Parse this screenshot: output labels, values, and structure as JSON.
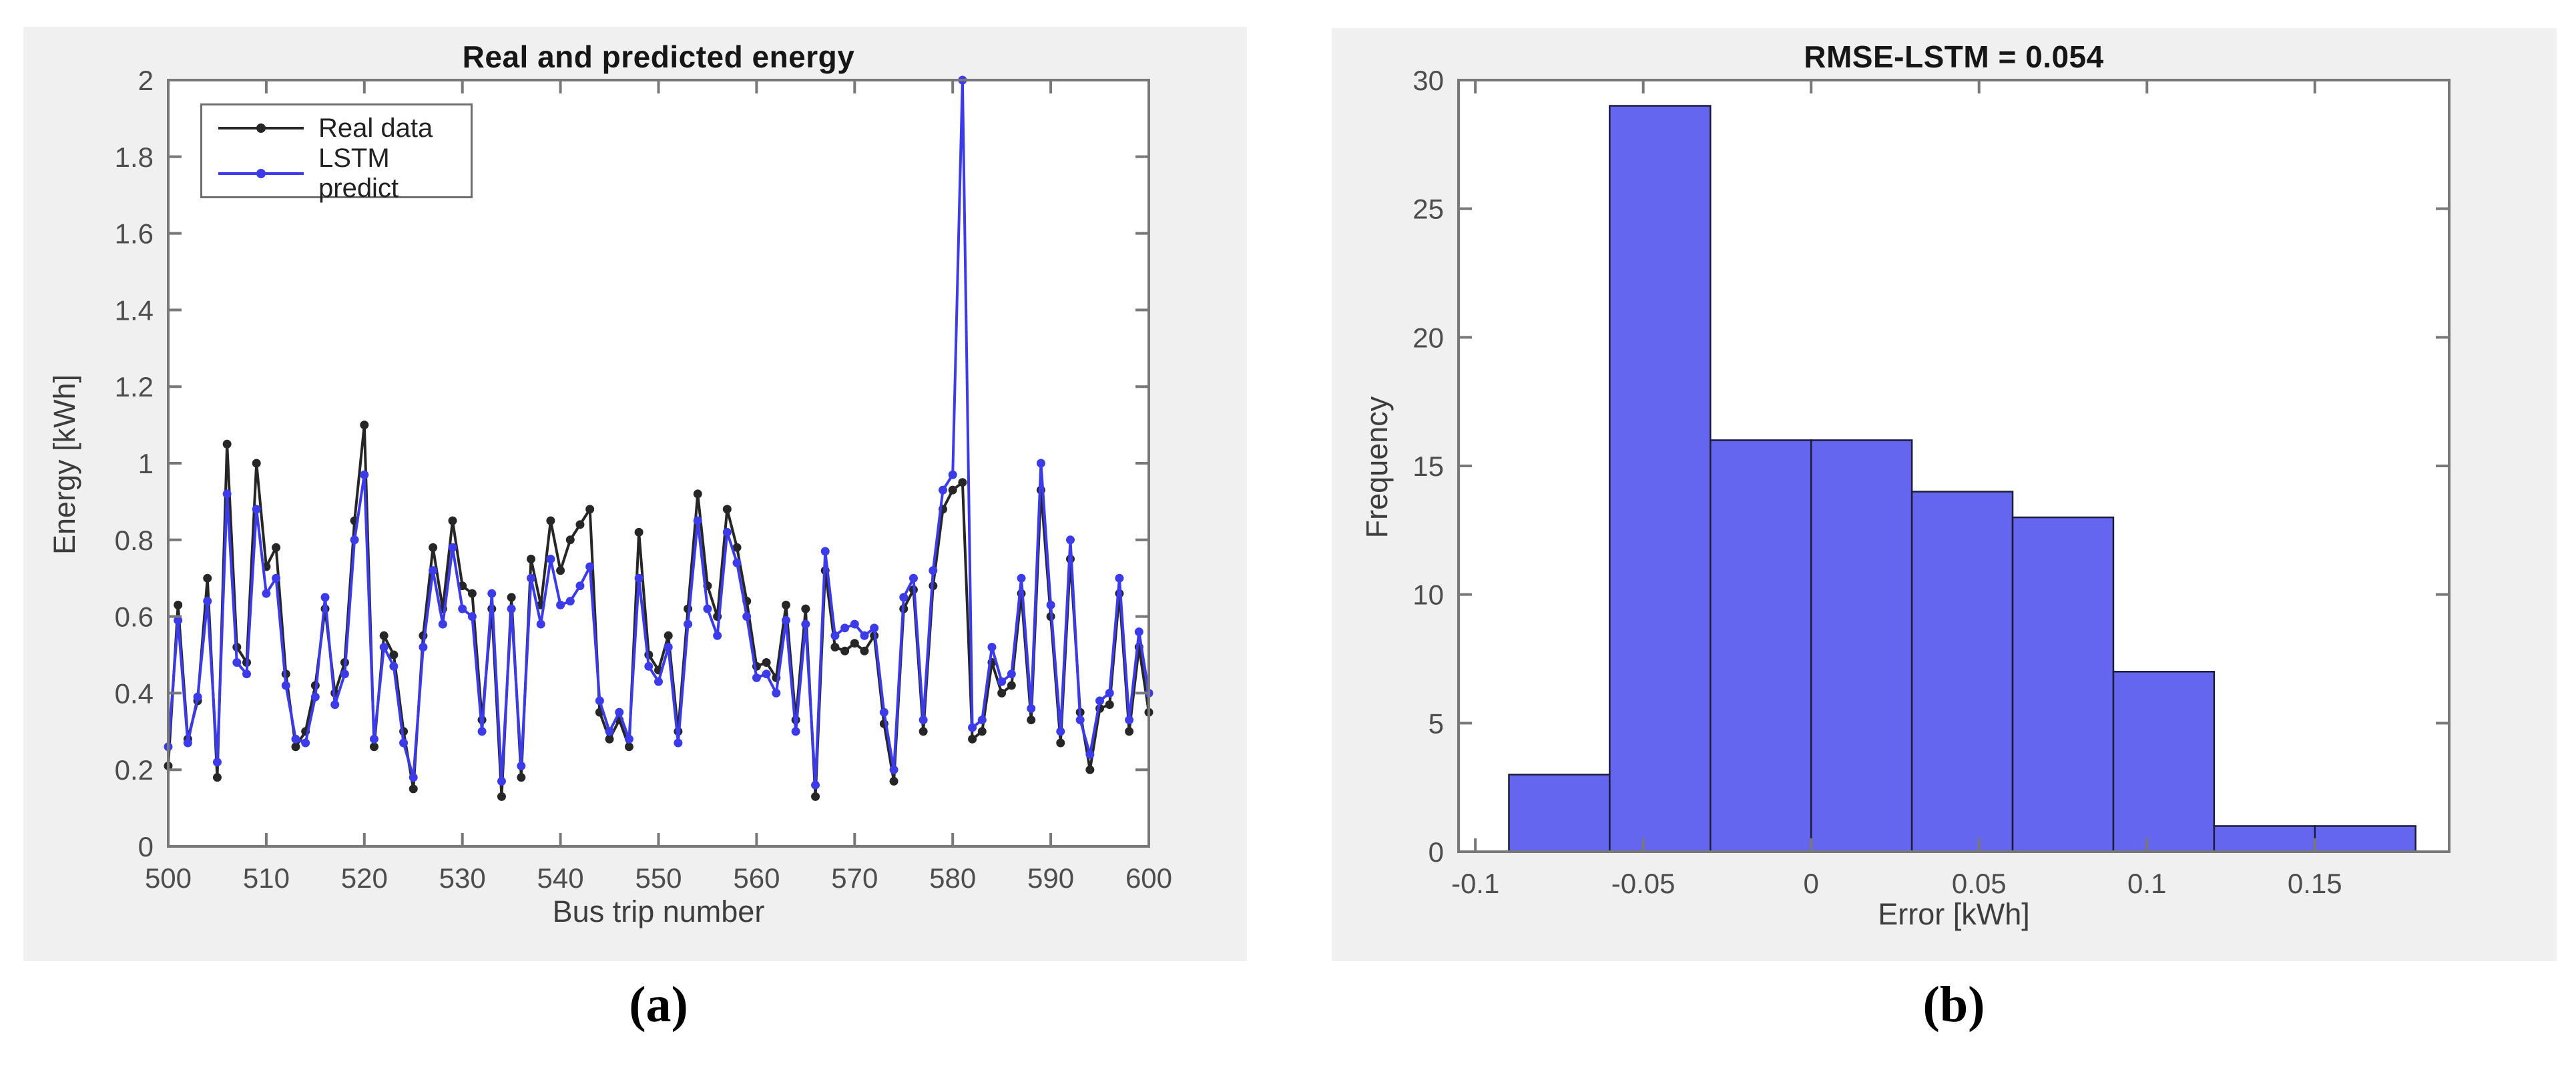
{
  "figure": {
    "background": "#ffffff",
    "panel_background": "#f0f0f0",
    "axis_color": "#787878",
    "tick_label_color": "#4d4d4d",
    "title_color": "#161616"
  },
  "captions": {
    "a": "(a)",
    "b": "(b)"
  },
  "chart_data": [
    {
      "id": "energy-line-plot",
      "type": "line",
      "title": "Real and predicted energy",
      "xlabel": "Bus trip number",
      "ylabel": "Energy [kWh]",
      "xlim": [
        500,
        600
      ],
      "ylim": [
        0,
        2
      ],
      "xticks": [
        500,
        510,
        520,
        530,
        540,
        550,
        560,
        570,
        580,
        590,
        600
      ],
      "xtick_labels": [
        "500",
        "510",
        "520",
        "530",
        "540",
        "550",
        "560",
        "570",
        "580",
        "590",
        "600"
      ],
      "yticks": [
        0,
        0.2,
        0.4,
        0.6,
        0.8,
        1,
        1.2,
        1.4,
        1.6,
        1.8,
        2
      ],
      "ytick_labels": [
        "0",
        "0.2",
        "0.4",
        "0.6",
        "0.8",
        "1",
        "1.2",
        "1.4",
        "1.6",
        "1.8",
        "2"
      ],
      "grid": false,
      "legend_position": "top-left",
      "x_start": 500,
      "x_step": 1,
      "series": [
        {
          "name": "Real data",
          "color": "#262626",
          "marker": "dot",
          "values": [
            0.21,
            0.63,
            0.28,
            0.38,
            0.7,
            0.18,
            1.05,
            0.52,
            0.48,
            1.0,
            0.73,
            0.78,
            0.45,
            0.26,
            0.3,
            0.42,
            0.62,
            0.4,
            0.48,
            0.85,
            1.1,
            0.26,
            0.55,
            0.5,
            0.3,
            0.15,
            0.55,
            0.78,
            0.62,
            0.85,
            0.68,
            0.66,
            0.33,
            0.62,
            0.13,
            0.65,
            0.18,
            0.75,
            0.63,
            0.85,
            0.72,
            0.8,
            0.84,
            0.88,
            0.35,
            0.28,
            0.33,
            0.26,
            0.82,
            0.5,
            0.46,
            0.55,
            0.3,
            0.62,
            0.92,
            0.68,
            0.6,
            0.88,
            0.78,
            0.64,
            0.47,
            0.48,
            0.44,
            0.63,
            0.33,
            0.62,
            0.13,
            0.72,
            0.52,
            0.51,
            0.53,
            0.51,
            0.55,
            0.32,
            0.17,
            0.62,
            0.67,
            0.3,
            0.68,
            0.88,
            0.93,
            0.95,
            0.28,
            0.3,
            0.48,
            0.4,
            0.42,
            0.66,
            0.33,
            0.93,
            0.6,
            0.27,
            0.75,
            0.35,
            0.2,
            0.36,
            0.37,
            0.66,
            0.3,
            0.52,
            0.35
          ]
        },
        {
          "name": "LSTM predict",
          "color": "#3b3bea",
          "marker": "dot",
          "values": [
            0.26,
            0.59,
            0.27,
            0.39,
            0.64,
            0.22,
            0.92,
            0.48,
            0.45,
            0.88,
            0.66,
            0.7,
            0.42,
            0.28,
            0.27,
            0.39,
            0.65,
            0.37,
            0.45,
            0.8,
            0.97,
            0.28,
            0.52,
            0.47,
            0.27,
            0.18,
            0.52,
            0.72,
            0.58,
            0.78,
            0.62,
            0.6,
            0.3,
            0.66,
            0.17,
            0.62,
            0.21,
            0.7,
            0.58,
            0.75,
            0.63,
            0.64,
            0.68,
            0.73,
            0.38,
            0.3,
            0.35,
            0.28,
            0.7,
            0.47,
            0.43,
            0.52,
            0.27,
            0.58,
            0.85,
            0.62,
            0.55,
            0.82,
            0.74,
            0.6,
            0.44,
            0.45,
            0.4,
            0.59,
            0.3,
            0.58,
            0.16,
            0.77,
            0.55,
            0.57,
            0.58,
            0.55,
            0.57,
            0.35,
            0.2,
            0.65,
            0.7,
            0.33,
            0.72,
            0.93,
            0.97,
            2.0,
            0.31,
            0.33,
            0.52,
            0.43,
            0.45,
            0.7,
            0.36,
            1.0,
            0.63,
            0.3,
            0.8,
            0.33,
            0.24,
            0.38,
            0.4,
            0.7,
            0.33,
            0.56,
            0.4
          ]
        }
      ]
    },
    {
      "id": "error-histogram",
      "type": "bar",
      "title": "RMSE-LSTM = 0.054",
      "xlabel": "Error [kWh]",
      "ylabel": "Frequency",
      "bin_start": -0.09,
      "bin_width": 0.03,
      "counts": [
        3,
        29,
        16,
        16,
        14,
        13,
        7,
        1,
        1
      ],
      "bin_edges": [
        -0.09,
        -0.06,
        -0.03,
        0,
        0.03,
        0.06,
        0.09,
        0.12,
        0.15,
        0.18
      ],
      "xlim": [
        -0.105,
        0.19
      ],
      "ylim": [
        0,
        30
      ],
      "xticks": [
        -0.1,
        -0.05,
        0,
        0.05,
        0.1,
        0.15
      ],
      "xtick_labels": [
        "-0.1",
        "-0.05",
        "0",
        "0.05",
        "0.1",
        "0.15"
      ],
      "yticks": [
        0,
        5,
        10,
        15,
        20,
        25,
        30
      ],
      "ytick_labels": [
        "0",
        "5",
        "10",
        "15",
        "20",
        "25",
        "30"
      ],
      "grid": false,
      "bar_fill": "#6566f0",
      "bar_edge": "#1c1c3a"
    }
  ]
}
